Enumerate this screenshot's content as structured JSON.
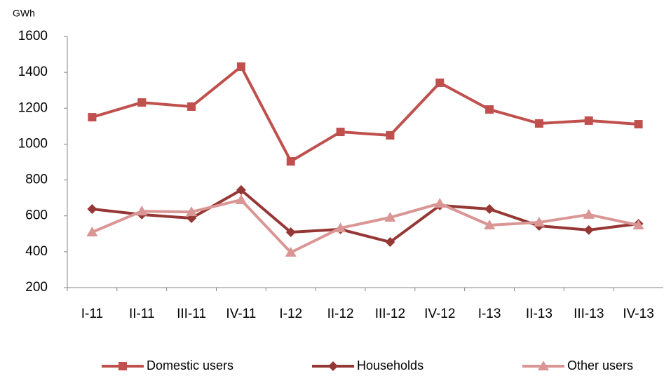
{
  "chart_data": {
    "type": "line",
    "y_label": "GWh",
    "categories": [
      "I-11",
      "II-11",
      "III-11",
      "IV-11",
      "I-12",
      "II-12",
      "III-12",
      "IV-12",
      "I-13",
      "II-13",
      "III-13",
      "IV-13"
    ],
    "series": [
      {
        "name": "Domestic users",
        "color": "#c0504d",
        "marker": "square",
        "values": [
          1150,
          1232,
          1209,
          1432,
          904,
          1068,
          1049,
          1342,
          1193,
          1115,
          1131,
          1111
        ]
      },
      {
        "name": "Households",
        "color": "#953735",
        "marker": "diamond",
        "values": [
          638,
          607,
          587,
          744,
          509,
          525,
          454,
          658,
          638,
          544,
          521,
          556
        ]
      },
      {
        "name": "Other users",
        "color": "#d99694",
        "marker": "triangle",
        "values": [
          509,
          626,
          622,
          689,
          396,
          532,
          591,
          669,
          548,
          564,
          607,
          548
        ]
      }
    ],
    "ylim": [
      200,
      1600
    ],
    "yticks": [
      200,
      400,
      600,
      800,
      1000,
      1200,
      1400,
      1600
    ],
    "grid": false,
    "legend": "bottom"
  }
}
